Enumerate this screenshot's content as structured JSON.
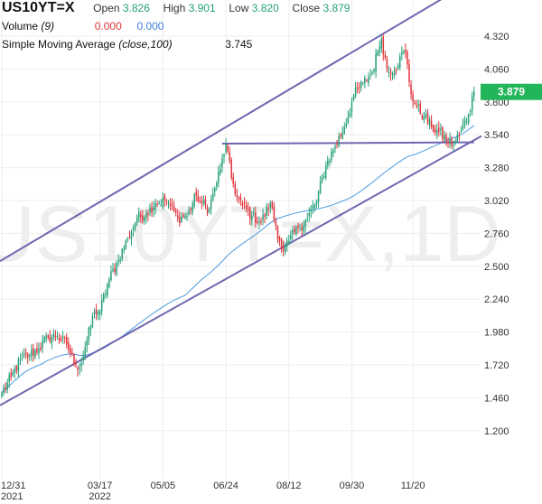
{
  "legend": {
    "symbol": "US10YT=X",
    "open_label": "Open",
    "open_value": "3.826",
    "high_label": "High",
    "high_value": "3.901",
    "low_label": "Low",
    "low_value": "3.820",
    "close_label": "Close",
    "close_value": "3.879",
    "volume_label": "Volume",
    "volume_param": "(9)",
    "volume_value_1": "0.000",
    "volume_value_2": "0.000",
    "sma_label": "Simple Moving Average",
    "sma_param": "(close,100)",
    "sma_value": "3.745"
  },
  "watermark": "US10YT=X,1D",
  "colors": {
    "up": "#26a07a",
    "down": "#e0343c",
    "sma": "#4a9be0",
    "trendline": "#6e66b0",
    "price_tag": "#22b55a",
    "grid": "#eeeeee",
    "axis_text": "#333333",
    "watermark": "#eeeeee"
  },
  "chart_data": {
    "type": "candlestick",
    "y_axis": {
      "ticks": [
        "4.320",
        "4.060",
        "3.800",
        "3.540",
        "3.280",
        "3.020",
        "2.760",
        "2.500",
        "2.240",
        "1.980",
        "1.720",
        "1.460",
        "1.200"
      ],
      "ylim": [
        0.9,
        4.55
      ]
    },
    "x_axis": {
      "ticks": [
        {
          "label": "12/31",
          "sublabel": "2021",
          "idx": 0
        },
        {
          "label": "03/17",
          "sublabel": "2022",
          "idx": 53
        },
        {
          "label": "05/05",
          "sublabel": "",
          "idx": 87
        },
        {
          "label": "06/24",
          "sublabel": "",
          "idx": 121
        },
        {
          "label": "08/12",
          "sublabel": "",
          "idx": 155
        },
        {
          "label": "09/30",
          "sublabel": "",
          "idx": 189
        },
        {
          "label": "11/20",
          "sublabel": "",
          "idx": 222
        }
      ],
      "xlim": [
        -1,
        288
      ]
    },
    "close_anchors": [
      [
        0,
        1.5
      ],
      [
        5,
        1.62
      ],
      [
        10,
        1.76
      ],
      [
        15,
        1.8
      ],
      [
        20,
        1.85
      ],
      [
        25,
        1.94
      ],
      [
        30,
        1.95
      ],
      [
        35,
        1.88
      ],
      [
        40,
        1.72
      ],
      [
        42,
        1.7
      ],
      [
        45,
        1.86
      ],
      [
        50,
        2.14
      ],
      [
        53,
        2.15
      ],
      [
        58,
        2.4
      ],
      [
        63,
        2.55
      ],
      [
        68,
        2.72
      ],
      [
        73,
        2.88
      ],
      [
        78,
        2.92
      ],
      [
        83,
        3.0
      ],
      [
        88,
        3.02
      ],
      [
        90,
        3.0
      ],
      [
        95,
        2.88
      ],
      [
        100,
        2.9
      ],
      [
        105,
        3.06
      ],
      [
        108,
        3.0
      ],
      [
        112,
        2.95
      ],
      [
        115,
        3.12
      ],
      [
        118,
        3.27
      ],
      [
        121,
        3.47
      ],
      [
        124,
        3.2
      ],
      [
        127,
        3.05
      ],
      [
        130,
        2.98
      ],
      [
        135,
        2.9
      ],
      [
        140,
        2.85
      ],
      [
        145,
        3.0
      ],
      [
        150,
        2.7
      ],
      [
        152,
        2.62
      ],
      [
        155,
        2.7
      ],
      [
        160,
        2.8
      ],
      [
        165,
        2.88
      ],
      [
        170,
        3.02
      ],
      [
        175,
        3.3
      ],
      [
        180,
        3.45
      ],
      [
        185,
        3.6
      ],
      [
        190,
        3.85
      ],
      [
        195,
        3.95
      ],
      [
        200,
        4.03
      ],
      [
        203,
        4.2
      ],
      [
        205,
        4.3
      ],
      [
        208,
        4.06
      ],
      [
        212,
        4.05
      ],
      [
        215,
        4.16
      ],
      [
        218,
        4.19
      ],
      [
        221,
        3.86
      ],
      [
        224,
        3.76
      ],
      [
        228,
        3.69
      ],
      [
        232,
        3.6
      ],
      [
        236,
        3.56
      ],
      [
        240,
        3.5
      ],
      [
        244,
        3.46
      ],
      [
        248,
        3.57
      ],
      [
        252,
        3.7
      ],
      [
        255,
        3.879
      ]
    ],
    "last_price": "3.879",
    "series": [
      {
        "name": "Simple Moving Average (close,100)",
        "type": "sma",
        "period": 100
      }
    ],
    "trendlines": [
      {
        "name": "upper-channel",
        "start": [
          -1,
          2.54
        ],
        "end": [
          259,
          4.8
        ]
      },
      {
        "name": "lower-channel",
        "start": [
          -1,
          1.4
        ],
        "end": [
          259,
          3.53
        ]
      },
      {
        "name": "horizontal-resistance",
        "start": [
          119,
          3.47
        ],
        "end": [
          255,
          3.48
        ]
      }
    ]
  }
}
